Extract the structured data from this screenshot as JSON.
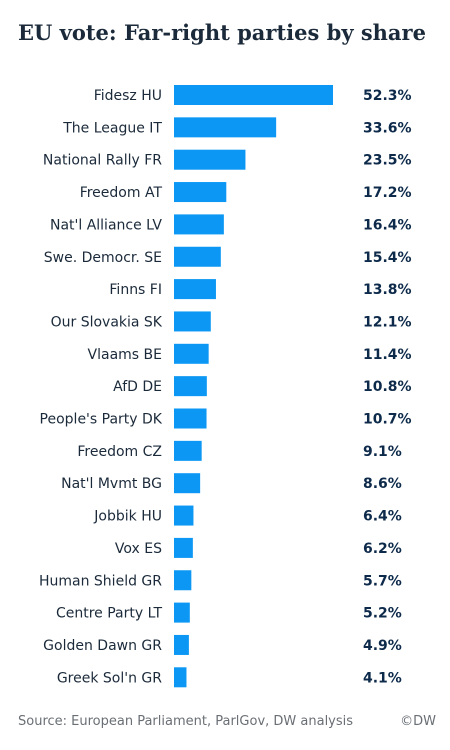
{
  "colors": {
    "bar": "#0b97f3",
    "label": "#1b2a3a",
    "value": "#0d2a4a",
    "footer": "#6a6f75"
  },
  "chart_data": {
    "type": "bar",
    "orientation": "horizontal",
    "title": "EU vote: Far-right parties by share",
    "categories": [
      "Fidesz HU",
      "The League IT",
      "National Rally FR",
      "Freedom AT",
      "Nat'l Alliance LV",
      "Swe. Democr. SE",
      "Finns FI",
      "Our Slovakia SK",
      "Vlaams BE",
      "AfD DE",
      "People's Party DK",
      "Freedom CZ",
      "Nat'l Mvmt BG",
      "Jobbik HU",
      "Vox ES",
      "Human Shield GR",
      "Centre Party LT",
      "Golden Dawn GR",
      "Greek Sol'n GR"
    ],
    "values": [
      52.3,
      33.6,
      23.5,
      17.2,
      16.4,
      15.4,
      13.8,
      12.1,
      11.4,
      10.8,
      10.7,
      9.1,
      8.6,
      6.4,
      6.2,
      5.7,
      5.2,
      4.9,
      4.1
    ],
    "value_labels": [
      "52.3%",
      "33.6%",
      "23.5%",
      "17.2%",
      "16.4%",
      "15.4%",
      "13.8%",
      "12.1%",
      "11.4%",
      "10.8%",
      "10.7%",
      "9.1%",
      "8.6%",
      "6.4%",
      "6.2%",
      "5.7%",
      "5.2%",
      "4.9%",
      "4.1%"
    ],
    "xlim": [
      0,
      52.3
    ],
    "grid": false,
    "legend": "none"
  },
  "footer": {
    "source": "Source: European Parliament, ParlGov, DW analysis",
    "credit": "©DW"
  }
}
